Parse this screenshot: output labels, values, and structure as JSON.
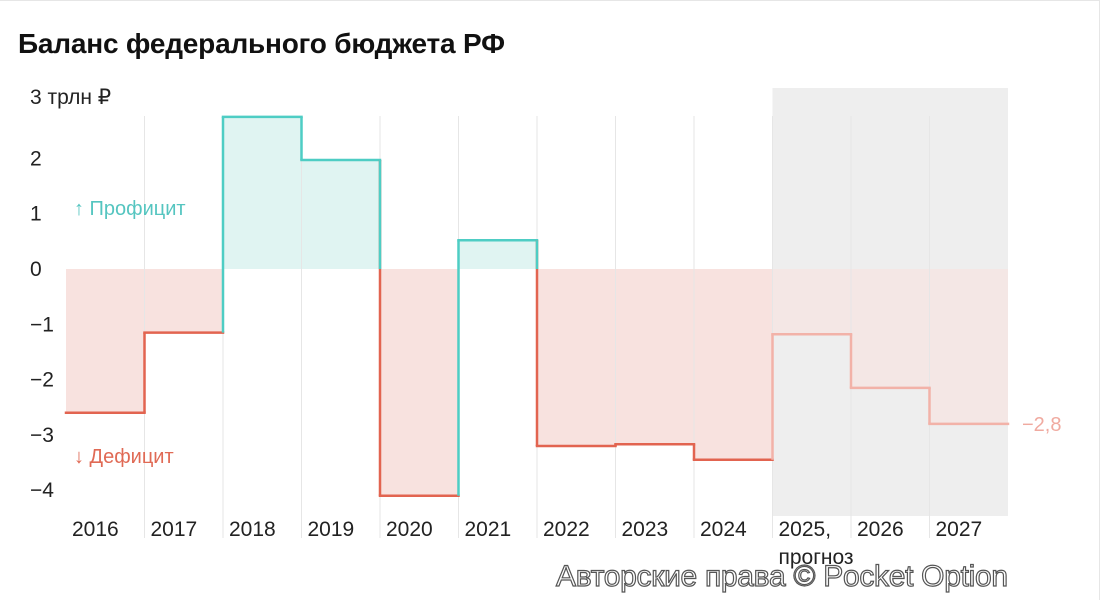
{
  "title": "Баланс федерального бюджета РФ",
  "watermark": "Авторские права © Pocket Option",
  "colors": {
    "surplus_line": "#4ecdc4",
    "surplus_fill": "#e0f4f2",
    "deficit_line": "#e26450",
    "deficit_fill": "#f8e2df",
    "forecast_line": "#f2b2a8",
    "forecast_bg": "#eeeeee"
  },
  "chart_data": {
    "type": "bar",
    "title": "Баланс федерального бюджета РФ",
    "ylabel": "трлн ₽",
    "ylim": [
      -4.5,
      3.2
    ],
    "grid": false,
    "categories": [
      "2016",
      "2017",
      "2018",
      "2019",
      "2020",
      "2021",
      "2022",
      "2023",
      "2024",
      "2025,",
      "2026",
      "2027"
    ],
    "category_sublabels": [
      "",
      "",
      "",
      "",
      "",
      "",
      "",
      "",
      "",
      "прогноз",
      "",
      ""
    ],
    "values": [
      -2.6,
      -1.15,
      2.75,
      1.97,
      -4.1,
      0.52,
      -3.2,
      -3.17,
      -3.45,
      -1.18,
      -2.15,
      -2.8
    ],
    "forecast_start_index": 9,
    "y_ticks": [
      {
        "value": 3,
        "label": "3 трлн ₽"
      },
      {
        "value": 2,
        "label": "2"
      },
      {
        "value": 1,
        "label": "1"
      },
      {
        "value": 0,
        "label": "0"
      },
      {
        "value": -1,
        "label": "−1"
      },
      {
        "value": -2,
        "label": "−2"
      },
      {
        "value": -3,
        "label": "−3"
      },
      {
        "value": -4,
        "label": "−4"
      }
    ],
    "annotations": [
      {
        "text": "↑ Профицит",
        "kind": "up"
      },
      {
        "text": "↓ Дефицит",
        "kind": "down"
      }
    ],
    "end_label": "−2,8"
  }
}
